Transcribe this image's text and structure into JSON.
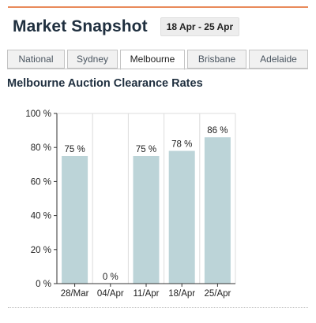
{
  "header": {
    "title": "Market Snapshot",
    "date_range": "18 Apr - 25 Apr"
  },
  "tabs": [
    {
      "label": "National",
      "active": false
    },
    {
      "label": "Sydney",
      "active": false
    },
    {
      "label": "Melbourne",
      "active": true
    },
    {
      "label": "Brisbane",
      "active": false
    },
    {
      "label": "Adelaide",
      "active": false
    }
  ],
  "chart_data": {
    "type": "bar",
    "title": "Melbourne Auction Clearance Rates",
    "categories": [
      "28/Mar",
      "04/Apr",
      "11/Apr",
      "18/Apr",
      "25/Apr"
    ],
    "values": [
      75,
      0,
      75,
      78,
      86
    ],
    "data_labels": [
      "75 %",
      "0 %",
      "75 %",
      "78 %",
      "86 %"
    ],
    "y_ticks": [
      0,
      20,
      40,
      60,
      80,
      100
    ],
    "y_tick_suffix": " %",
    "ylim": [
      0,
      100
    ],
    "grid": "vertical",
    "bar_color": "#bcd4d8",
    "legend": "none"
  }
}
